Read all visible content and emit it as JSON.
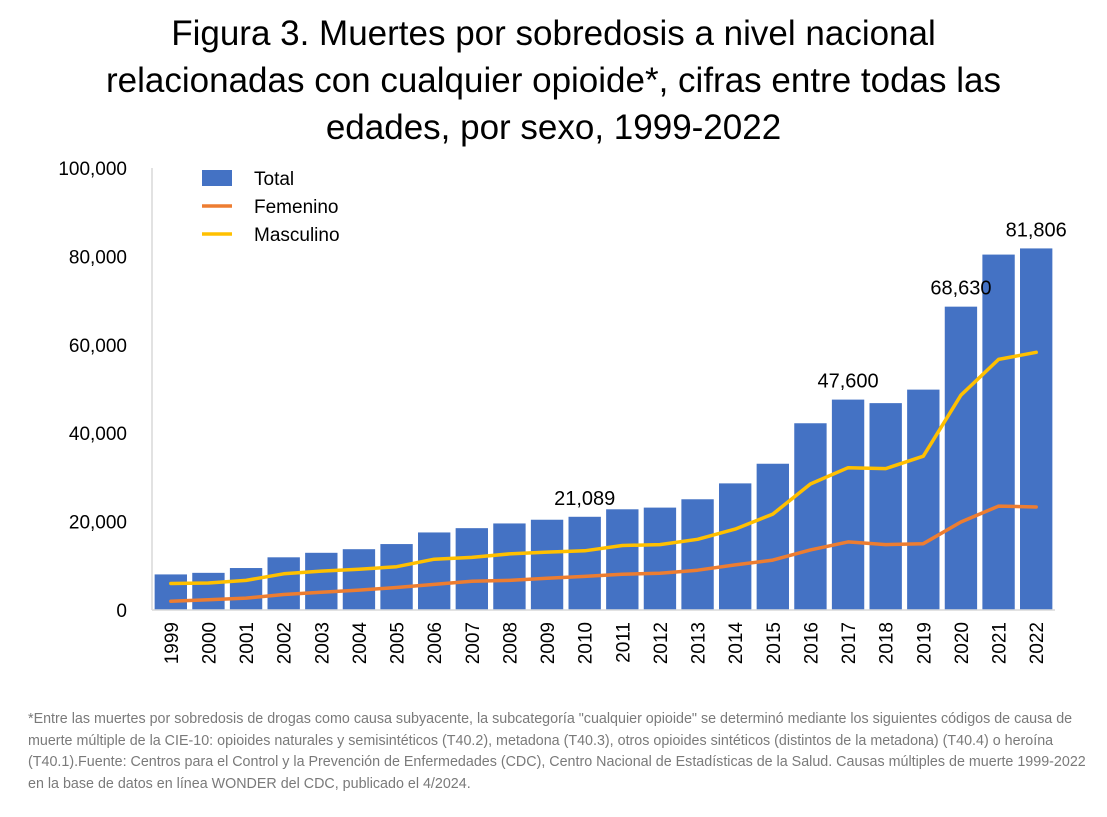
{
  "title_lines": [
    "Figura 3. Muertes  por sobredosis a nivel nacional",
    "relacionadas con cualquier opioide*, cifras entre todas las",
    "edades, por sexo, 1999-2022"
  ],
  "footnote": "*Entre las muertes por sobredosis de drogas como causa subyacente, la subcategoría \"cualquier opioide\" se determinó mediante los siguientes códigos de causa de muerte múltiple de la CIE-10: opioides naturales y semisintéticos (T40.2), metadona (T40.3), otros opioides sintéticos (distintos de la metadona) (T40.4) o heroína (T40.1).Fuente: Centros para el Control y la Prevención de Enfermedades (CDC), Centro Nacional de Estadísticas de la Salud. Causas múltiples de muerte 1999-2022 en la base de datos en línea WONDER del CDC, publicado el 4/2024.",
  "colors": {
    "total": "#4472C4",
    "femenino": "#ED7D31",
    "masculino": "#FFC000",
    "axis": "#d9d9d9"
  },
  "chart_data": {
    "type": "bar",
    "title": "Figura 3. Muertes  por sobredosis a nivel nacional relacionadas con cualquier opioide*, cifras entre todas las edades, por sexo, 1999-2022",
    "categories": [
      "1999",
      "2000",
      "2001",
      "2002",
      "2003",
      "2004",
      "2005",
      "2006",
      "2007",
      "2008",
      "2009",
      "2010",
      "2011",
      "2012",
      "2013",
      "2014",
      "2015",
      "2016",
      "2017",
      "2018",
      "2019",
      "2020",
      "2021",
      "2022"
    ],
    "ylim": [
      0,
      100000
    ],
    "yticks": [
      0,
      20000,
      40000,
      60000,
      80000,
      100000
    ],
    "ytick_labels": [
      "0",
      "20,000",
      "40,000",
      "60,000",
      "80,000",
      "100,000"
    ],
    "grid": false,
    "legend_position": "top-left",
    "series": [
      {
        "name": "Total",
        "type": "bar",
        "values": [
          8050,
          8407,
          9496,
          11920,
          12940,
          13756,
          14918,
          17545,
          18516,
          19582,
          20422,
          21089,
          22784,
          23166,
          25052,
          28647,
          33091,
          42249,
          47600,
          46802,
          49860,
          68630,
          80411,
          81806
        ]
      },
      {
        "name": "Femenino",
        "type": "line",
        "values": [
          2000,
          2300,
          2700,
          3500,
          4000,
          4500,
          5100,
          5800,
          6500,
          6700,
          7200,
          7600,
          8100,
          8300,
          9000,
          10200,
          11300,
          13600,
          15400,
          14800,
          15000,
          19900,
          23500,
          23300
        ]
      },
      {
        "name": "Masculino",
        "type": "line",
        "values": [
          6000,
          6100,
          6700,
          8200,
          8800,
          9200,
          9800,
          11500,
          11900,
          12700,
          13100,
          13400,
          14600,
          14800,
          16000,
          18300,
          21700,
          28500,
          32200,
          32000,
          34800,
          48600,
          56700,
          58300
        ]
      }
    ],
    "data_labels": [
      {
        "category": "2010",
        "text": "21,089"
      },
      {
        "category": "2017",
        "text": "47,600"
      },
      {
        "category": "2020",
        "text": "68,630"
      },
      {
        "category": "2022",
        "text": "81,806"
      }
    ]
  }
}
